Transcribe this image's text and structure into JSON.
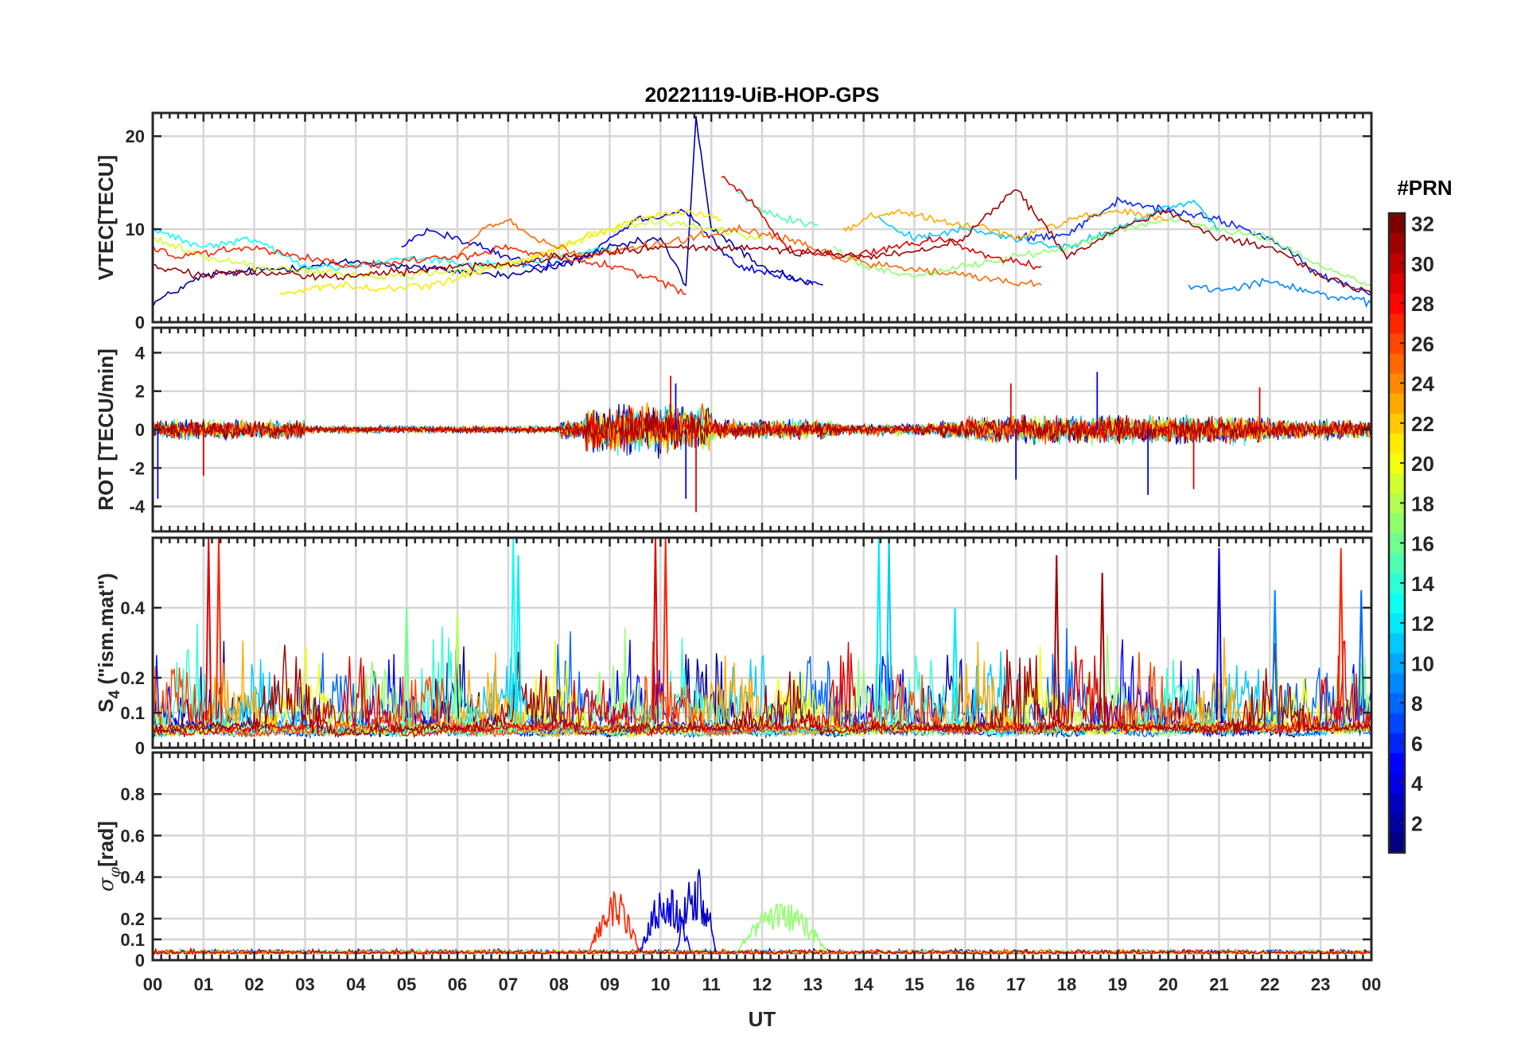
{
  "figure_title": "20221119-UiB-HOP-GPS",
  "chart_data": [
    {
      "type": "line",
      "panel": "vtec",
      "ylabel": "VTEC[TECU]",
      "ylim": [
        0,
        22.5
      ],
      "yticks": [
        0,
        10,
        20
      ],
      "ytick_labels": [
        "0",
        "10",
        "20"
      ],
      "xlim": [
        0,
        24
      ],
      "grid": true,
      "series": [
        {
          "prn": 2,
          "x": [
            0,
            1,
            2,
            3,
            4,
            5,
            6,
            7,
            8,
            9,
            10,
            10.5,
            10.7,
            11,
            12,
            13
          ],
          "y": [
            2,
            5,
            5.5,
            6,
            6.5,
            6,
            5.5,
            5,
            6,
            8,
            9,
            4,
            22,
            10,
            6,
            4
          ]
        },
        {
          "prn": 4,
          "x": [
            4.9,
            5.5,
            6.5,
            7.5,
            8.5,
            9.5,
            10.5,
            11.5,
            13.2
          ],
          "y": [
            8,
            10,
            8,
            6,
            7,
            11,
            12,
            6,
            4
          ]
        },
        {
          "prn": 6,
          "x": [
            17,
            18,
            19,
            20,
            21,
            22,
            23,
            24
          ],
          "y": [
            9,
            9.5,
            13,
            12,
            11,
            9,
            5,
            3
          ]
        },
        {
          "prn": 9,
          "x": [
            20.4,
            21,
            22,
            23,
            24
          ],
          "y": [
            4,
            3.5,
            4.5,
            3,
            2
          ]
        },
        {
          "prn": 11,
          "x": [
            14.3,
            15,
            16,
            17,
            18,
            19,
            19.8,
            20.5,
            21
          ],
          "y": [
            11,
            9,
            10,
            9,
            8,
            10,
            12,
            13,
            10
          ]
        },
        {
          "prn": 13,
          "x": [
            0,
            1,
            2,
            3,
            4,
            5,
            6,
            7,
            8,
            9
          ],
          "y": [
            10,
            8,
            9,
            6,
            6,
            7,
            6.5,
            6,
            7,
            8
          ]
        },
        {
          "prn": 15,
          "x": [
            11.5,
            12,
            12.5,
            13.1
          ],
          "y": [
            14,
            12,
            11,
            10.5
          ]
        },
        {
          "prn": 17,
          "x": [
            13.4,
            14,
            15,
            16,
            17,
            18,
            19,
            20,
            21,
            22,
            23,
            24
          ],
          "y": [
            8,
            6,
            5,
            6,
            7,
            8,
            10,
            11,
            10,
            9,
            6,
            4
          ]
        },
        {
          "prn": 19,
          "x": [
            0,
            1,
            2,
            3,
            4,
            5,
            6,
            7,
            8,
            9,
            10,
            11,
            12
          ],
          "y": [
            9,
            7,
            6,
            5.5,
            5,
            5,
            5.5,
            6,
            8,
            10,
            11,
            10,
            9
          ]
        },
        {
          "prn": 21,
          "x": [
            2.5,
            3.5,
            4.5,
            5.5,
            6.5,
            7.5,
            8.5,
            9.5,
            10.5,
            11.2
          ],
          "y": [
            3,
            4,
            3.5,
            4,
            5.5,
            7,
            9,
            11,
            12,
            11
          ]
        },
        {
          "prn": 23,
          "x": [
            13.6,
            14.5,
            15.5,
            16.5,
            17,
            18,
            19,
            20
          ],
          "y": [
            10,
            12,
            11,
            10,
            9,
            11,
            12,
            11
          ]
        },
        {
          "prn": 25,
          "x": [
            6,
            6.5,
            7,
            7.5,
            8.5,
            9.5,
            10.5,
            11.5,
            12.5,
            13.4,
            14.5,
            16,
            17.5
          ],
          "y": [
            7,
            10,
            11,
            9,
            7,
            8,
            9,
            10,
            9,
            7,
            6,
            5,
            4
          ]
        },
        {
          "prn": 27,
          "x": [
            0,
            0.5,
            1,
            2,
            3,
            4,
            5,
            6,
            7,
            8,
            9,
            9.8,
            10.5
          ],
          "y": [
            8,
            7,
            7.5,
            8,
            7,
            6,
            6.5,
            7,
            8,
            7,
            6,
            5,
            3
          ]
        },
        {
          "prn": 29,
          "x": [
            11.2,
            11.8,
            12.5,
            13.5,
            14.5,
            15.5,
            16.5,
            17.5
          ],
          "y": [
            15.5,
            13,
            8,
            7,
            8,
            9,
            7,
            6
          ]
        },
        {
          "prn": 31,
          "x": [
            0,
            1,
            2,
            3,
            4,
            5,
            6,
            7,
            8,
            9,
            10,
            11,
            12,
            13,
            14,
            15,
            16,
            17,
            18,
            19,
            20,
            21,
            22,
            23,
            24
          ],
          "y": [
            6,
            5,
            5.5,
            5,
            5,
            5.5,
            6,
            6,
            7,
            7.5,
            8,
            8,
            8,
            7.5,
            7,
            7.5,
            9,
            14.5,
            7,
            10,
            12,
            9,
            8,
            5,
            3
          ]
        }
      ]
    },
    {
      "type": "line",
      "panel": "rot",
      "ylabel": "ROT [TECU/min]",
      "ylim": [
        -5.3,
        5.3
      ],
      "yticks": [
        -4,
        -2,
        0,
        2,
        4
      ],
      "ytick_labels": [
        "-4",
        "-2",
        "0",
        "2",
        "4"
      ],
      "xlim": [
        0,
        24
      ],
      "grid": true,
      "spikes": [
        [
          10.2,
          2.8
        ],
        [
          10.5,
          -3.6
        ],
        [
          10.7,
          -4.3
        ],
        [
          10.3,
          2.4
        ],
        [
          21.8,
          2.2
        ],
        [
          19.6,
          -3.4
        ],
        [
          20.5,
          -3.1
        ],
        [
          18.6,
          3.0
        ],
        [
          16.9,
          2.4
        ],
        [
          17.0,
          -2.6
        ],
        [
          1.0,
          -2.4
        ],
        [
          0.1,
          -3.6
        ]
      ]
    },
    {
      "type": "line",
      "panel": "s4",
      "ylabel": "S4 (\"ism.mat\")",
      "ylim": [
        0,
        0.6
      ],
      "yticks": [
        0,
        0.1,
        0.2,
        0.4
      ],
      "ytick_labels": [
        "0",
        "0.1",
        "0.2",
        "0.4"
      ],
      "xlim": [
        0,
        24
      ],
      "grid": true,
      "peaks": [
        [
          1.1,
          0.6
        ],
        [
          1.3,
          0.6
        ],
        [
          7.1,
          0.6
        ],
        [
          7.2,
          0.55
        ],
        [
          9.9,
          0.6
        ],
        [
          10.1,
          0.6
        ],
        [
          14.3,
          0.6
        ],
        [
          14.5,
          0.6
        ],
        [
          17.8,
          0.55
        ],
        [
          21.0,
          0.57
        ],
        [
          23.4,
          0.57
        ],
        [
          5.0,
          0.4
        ],
        [
          6.0,
          0.38
        ],
        [
          15.8,
          0.4
        ],
        [
          18.7,
          0.5
        ],
        [
          22.1,
          0.45
        ],
        [
          23.8,
          0.45
        ]
      ]
    },
    {
      "type": "line",
      "panel": "sigma_phi",
      "ylabel": "σφ[rad]",
      "ylim": [
        0,
        1.0
      ],
      "yticks": [
        0,
        0.1,
        0.2,
        0.4,
        0.6,
        0.8
      ],
      "ytick_labels": [
        "0",
        "0.1",
        "0.2",
        "0.4",
        "0.6",
        "0.8"
      ],
      "xlim": [
        0,
        24
      ],
      "grid": true,
      "bursts": [
        [
          8.6,
          9.6,
          0.3,
          27
        ],
        [
          9.6,
          10.6,
          0.33,
          4
        ],
        [
          10.3,
          11.1,
          0.42,
          3
        ],
        [
          11.5,
          13.3,
          0.25,
          17
        ]
      ]
    }
  ],
  "xaxis": {
    "label": "UT",
    "tick_labels": [
      "00",
      "01",
      "02",
      "03",
      "04",
      "05",
      "06",
      "07",
      "08",
      "09",
      "10",
      "11",
      "12",
      "13",
      "14",
      "15",
      "16",
      "17",
      "18",
      "19",
      "20",
      "21",
      "22",
      "23",
      "00"
    ]
  },
  "colorbar": {
    "title": "#PRN",
    "min": 1,
    "max": 32,
    "tick_labels": [
      "2",
      "4",
      "6",
      "8",
      "10",
      "12",
      "14",
      "16",
      "18",
      "20",
      "22",
      "24",
      "26",
      "28",
      "30",
      "32"
    ],
    "colormap": "jet"
  }
}
